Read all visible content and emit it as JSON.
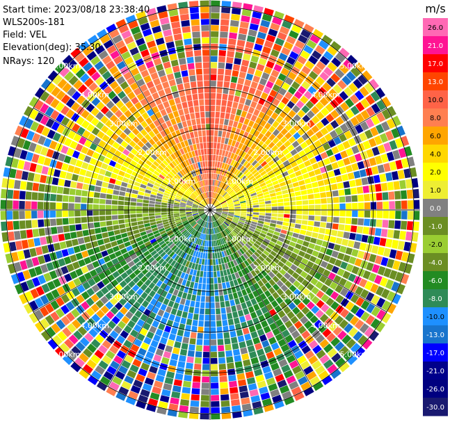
{
  "info": {
    "start_time": "Start time: 2023/08/18 23:38:40",
    "instrument": "WLS200s-181",
    "field": "Field: VEL",
    "elevation": "Elevation(deg): 35.30",
    "nrays": "NRays: 120"
  },
  "colorbar": {
    "unit": "m/s",
    "ticks": [
      "26.0",
      "21.0",
      "17.0",
      "13.0",
      "10.0",
      "8.0",
      "6.0",
      "4.0",
      "2.0",
      "1.0",
      "0.0",
      "-1.0",
      "-2.0",
      "-4.0",
      "-6.0",
      "-8.0",
      "-10.0",
      "-13.0",
      "-17.0",
      "-21.0",
      "-26.0",
      "-30.0"
    ],
    "colors": [
      "#ff69b4",
      "#ff1493",
      "#ff0000",
      "#ff4500",
      "#ff6347",
      "#ff7f50",
      "#ffa500",
      "#ffd700",
      "#ffff00",
      "#eeee33",
      "#808080",
      "#6b8e23",
      "#9acd32",
      "#6b8e23",
      "#228b22",
      "#2e8b57",
      "#1e90ff",
      "#1874cd",
      "#0000ff",
      "#00008b",
      "#000080",
      "#191970"
    ]
  },
  "chart_data": {
    "type": "heatmap",
    "projection": "polar-ppi",
    "field": "VEL",
    "units": "m/s",
    "range_rings_km": [
      1.0,
      2.0,
      3.0,
      4.0,
      5.0
    ],
    "ring_labels": [
      "1.00km",
      "2.00km",
      "3.00km",
      "4.00km",
      "5.00km"
    ],
    "nrays": 120,
    "elevation_deg": 35.3,
    "approx_pattern": [
      {
        "azimuth_deg": 0,
        "region": "near",
        "velocity": 10
      },
      {
        "azimuth_deg": 45,
        "region": "near",
        "velocity": 4
      },
      {
        "azimuth_deg": 90,
        "region": "near",
        "velocity": 1
      },
      {
        "azimuth_deg": 135,
        "region": "near",
        "velocity": -2
      },
      {
        "azimuth_deg": 180,
        "region": "near",
        "velocity": -8
      },
      {
        "azimuth_deg": 225,
        "region": "near",
        "velocity": -6
      },
      {
        "azimuth_deg": 270,
        "region": "near",
        "velocity": -1
      },
      {
        "azimuth_deg": 315,
        "region": "near",
        "velocity": 4
      }
    ],
    "grid": true
  }
}
